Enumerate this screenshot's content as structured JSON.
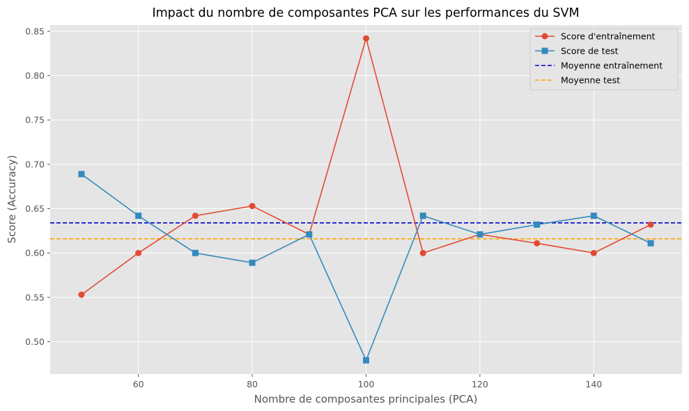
{
  "chart_data": {
    "type": "line",
    "title": "Impact du nombre de composantes PCA sur les performances du SVM",
    "xlabel": "Nombre de composantes principales (PCA)",
    "ylabel": "Score (Accuracy)",
    "x": [
      50,
      60,
      70,
      80,
      90,
      100,
      110,
      120,
      130,
      140,
      150
    ],
    "xlim": [
      44.5,
      155.5
    ],
    "ylim": [
      0.4635,
      0.857
    ],
    "xticks": [
      60,
      80,
      100,
      120,
      140
    ],
    "xtick_labels": [
      "60",
      "80",
      "100",
      "120",
      "140"
    ],
    "yticks": [
      0.5,
      0.55,
      0.6,
      0.65,
      0.7,
      0.75,
      0.8,
      0.85
    ],
    "ytick_labels": [
      "0.50",
      "0.55",
      "0.60",
      "0.65",
      "0.70",
      "0.75",
      "0.80",
      "0.85"
    ],
    "grid": true,
    "legend_position": "top-right",
    "series": [
      {
        "name": "Score d'entraînement",
        "color": "#E24A33",
        "marker": "circle",
        "values": [
          0.553,
          0.6,
          0.642,
          0.653,
          0.621,
          0.842,
          0.6,
          0.621,
          0.611,
          0.6,
          0.632
        ]
      },
      {
        "name": "Score de test",
        "color": "#348ABD",
        "marker": "square",
        "values": [
          0.689,
          0.642,
          0.6,
          0.589,
          0.621,
          0.479,
          0.642,
          0.621,
          0.632,
          0.642,
          0.611
        ]
      }
    ],
    "reference_lines": [
      {
        "name": "Moyenne entraînement",
        "value": 0.634,
        "color": "#0000CD",
        "style": "dashed"
      },
      {
        "name": "Moyenne test",
        "value": 0.616,
        "color": "#FFA500",
        "style": "dashed"
      }
    ],
    "style": {
      "plot_background": "#E5E5E5",
      "grid_color": "#FFFFFF",
      "text_color": "#555555",
      "title_color": "#000000"
    }
  }
}
